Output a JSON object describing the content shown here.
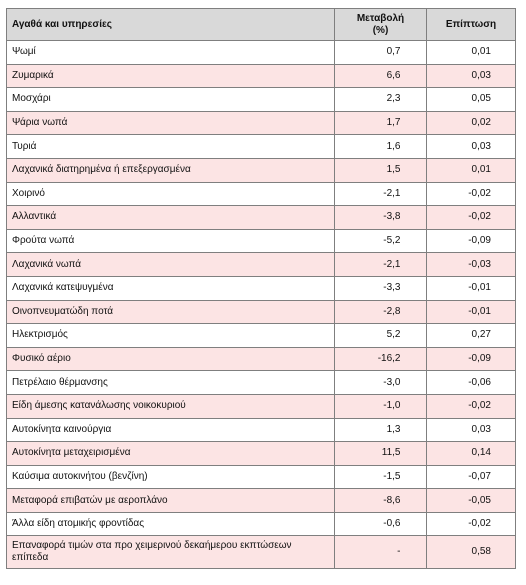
{
  "table": {
    "headers": {
      "item": "Αγαθά και υπηρεσίες",
      "change_line1": "Μεταβολή",
      "change_line2": "(%)",
      "impact": "Επίπτωση"
    },
    "rows": [
      {
        "item": "Ψωμί",
        "change": "0,7",
        "impact": "0,01"
      },
      {
        "item": "Ζυμαρικά",
        "change": "6,6",
        "impact": "0,03"
      },
      {
        "item": "Μοσχάρι",
        "change": "2,3",
        "impact": "0,05"
      },
      {
        "item": "Ψάρια νωπά",
        "change": "1,7",
        "impact": "0,02"
      },
      {
        "item": "Τυριά",
        "change": "1,6",
        "impact": "0,03"
      },
      {
        "item": "Λαχανικά διατηρημένα ή επεξεργασμένα",
        "change": "1,5",
        "impact": "0,01"
      },
      {
        "item": "Χοιρινό",
        "change": "-2,1",
        "impact": "-0,02"
      },
      {
        "item": "Αλλαντικά",
        "change": "-3,8",
        "impact": "-0,02"
      },
      {
        "item": "Φρούτα νωπά",
        "change": "-5,2",
        "impact": "-0,09"
      },
      {
        "item": "Λαχανικά νωπά",
        "change": "-2,1",
        "impact": "-0,03"
      },
      {
        "item": "Λαχανικά κατεψυγμένα",
        "change": "-3,3",
        "impact": "-0,01"
      },
      {
        "item": "Οινοπνευματώδη ποτά",
        "change": "-2,8",
        "impact": "-0,01"
      },
      {
        "item": "Ηλεκτρισμός",
        "change": "5,2",
        "impact": "0,27"
      },
      {
        "item": "Φυσικό αέριο",
        "change": "-16,2",
        "impact": "-0,09"
      },
      {
        "item": "Πετρέλαιο θέρμανσης",
        "change": "-3,0",
        "impact": "-0,06"
      },
      {
        "item": "Είδη άμεσης κατανάλωσης νοικοκυριού",
        "change": "-1,0",
        "impact": "-0,02"
      },
      {
        "item": "Αυτοκίνητα καινούργια",
        "change": "1,3",
        "impact": "0,03"
      },
      {
        "item": "Αυτοκίνητα μεταχειρισμένα",
        "change": "11,5",
        "impact": "0,14"
      },
      {
        "item": "Καύσιμα αυτοκινήτου (βενζίνη)",
        "change": "-1,5",
        "impact": "-0,07"
      },
      {
        "item": "Μεταφορά επιβατών με αεροπλάνο",
        "change": "-8,6",
        "impact": "-0,05"
      },
      {
        "item": "Άλλα είδη ατομικής φροντίδας",
        "change": "-0,6",
        "impact": "-0,02"
      },
      {
        "item": "Επαναφορά τιμών στα προ χειμερινού δεκαήμερου εκπτώσεων επίπεδα",
        "change": "-",
        "impact": "0,58"
      }
    ]
  }
}
